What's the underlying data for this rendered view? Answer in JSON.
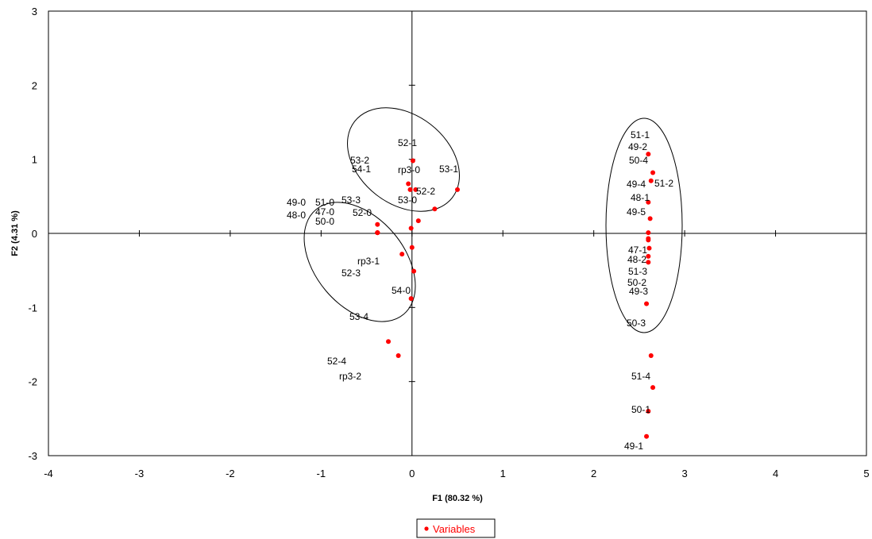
{
  "chart_data": {
    "type": "scatter",
    "xlabel": "F1 (80.32 %)",
    "ylabel": "F2 (4.31 %)",
    "xlim": [
      -4,
      5
    ],
    "ylim": [
      -3,
      3
    ],
    "xticks": [
      -4,
      -3,
      -2,
      -1,
      0,
      1,
      2,
      3,
      4,
      5
    ],
    "yticks": [
      -3,
      -2,
      -1,
      0,
      1,
      2,
      3
    ],
    "grid": false,
    "legend_position": "bottom",
    "colors": {
      "points": "#ff0000",
      "axes": "#000000"
    },
    "series": [
      {
        "name": "Variables",
        "points": [
          {
            "label": "52-1",
            "x": 0.01,
            "y": 0.98
          },
          {
            "label": "53-2",
            "x": -0.04,
            "y": 0.67
          },
          {
            "label": "54-1",
            "x": -0.02,
            "y": 0.59
          },
          {
            "label": "rp3-0",
            "x": 0.04,
            "y": 0.59
          },
          {
            "label": "53-1",
            "x": 0.5,
            "y": 0.59
          },
          {
            "label": "52-2",
            "x": 0.25,
            "y": 0.33
          },
          {
            "label": "53-0",
            "x": 0.07,
            "y": 0.17
          },
          {
            "label": "53-3",
            "x": -0.38,
            "y": 0.12
          },
          {
            "label": "52-0",
            "x": -0.01,
            "y": 0.07
          },
          {
            "label": "49-0",
            "x": -0.38,
            "y": 0.01
          },
          {
            "label": "51-0",
            "x": -0.38,
            "y": 0.01
          },
          {
            "label": "48-0",
            "x": -0.38,
            "y": 0.01
          },
          {
            "label": "47-0",
            "x": -0.38,
            "y": 0.01
          },
          {
            "label": "50-0",
            "x": -0.38,
            "y": 0.01
          },
          {
            "label": "rp3-1",
            "x": 0.0,
            "y": -0.19
          },
          {
            "label": "52-3",
            "x": -0.11,
            "y": -0.28
          },
          {
            "label": "54-0",
            "x": 0.02,
            "y": -0.51
          },
          {
            "label": "53-4",
            "x": -0.01,
            "y": -0.88
          },
          {
            "label": "52-4",
            "x": -0.26,
            "y": -1.46
          },
          {
            "label": "rp3-2",
            "x": -0.15,
            "y": -1.65
          },
          {
            "label": "51-1",
            "x": 2.6,
            "y": 1.07
          },
          {
            "label": "49-2",
            "x": 2.65,
            "y": 0.82
          },
          {
            "label": "50-4",
            "x": 2.63,
            "y": 0.71
          },
          {
            "label": "51-2",
            "x": 2.6,
            "y": 0.42
          },
          {
            "label": "49-4",
            "x": 2.62,
            "y": 0.2
          },
          {
            "label": "48-1",
            "x": 2.6,
            "y": 0.01
          },
          {
            "label": "49-5",
            "x": 2.6,
            "y": -0.07
          },
          {
            "label": "47-1",
            "x": 2.61,
            "y": -0.2
          },
          {
            "label": "48-2",
            "x": 2.6,
            "y": -0.31
          },
          {
            "label": "51-3",
            "x": 2.6,
            "y": -0.39
          },
          {
            "label": "50-2",
            "x": 2.6,
            "y": -0.09
          },
          {
            "label": "49-3",
            "x": 2.58,
            "y": -0.95
          },
          {
            "label": "50-3",
            "x": 2.63,
            "y": -1.65
          },
          {
            "label": "51-4",
            "x": 2.65,
            "y": -2.08
          },
          {
            "label": "50-1",
            "x": 2.6,
            "y": -2.4
          },
          {
            "label": "49-1",
            "x": 2.58,
            "y": -2.74
          }
        ]
      }
    ]
  }
}
